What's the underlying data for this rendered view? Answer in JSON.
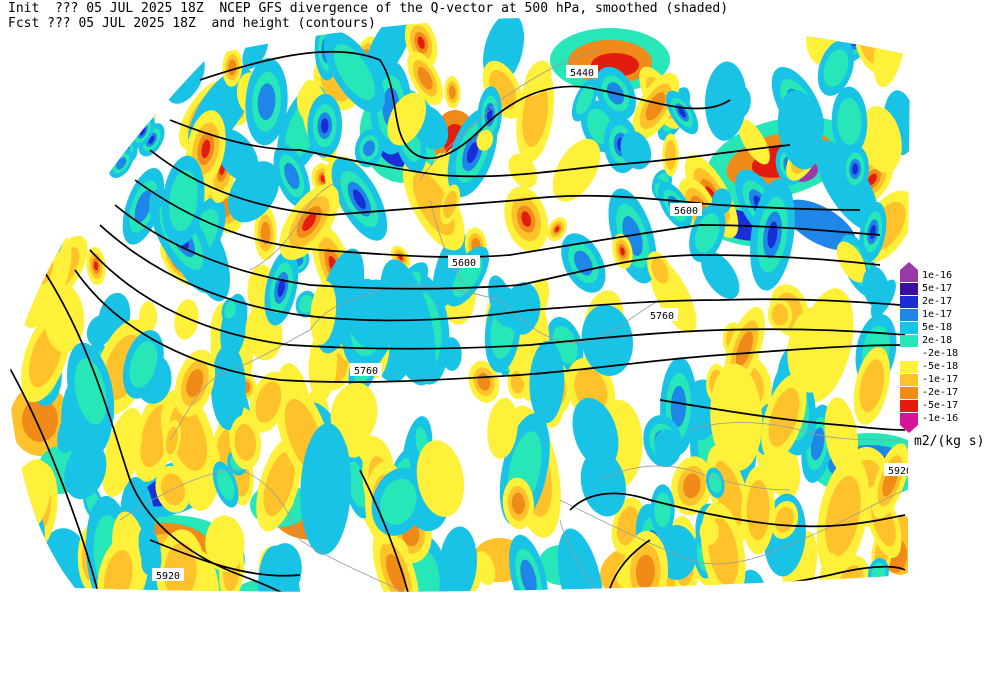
{
  "header": {
    "line1": "Init  ??? 05 JUL 2025 18Z  NCEP GFS divergence of the Q-vector at 500 hPa, smoothed (shaded)",
    "line2": "Fcst ??? 05 JUL 2025 18Z  and height (contours)"
  },
  "legend": {
    "units": "m2/(kg s)",
    "items": [
      {
        "label": "1e-16",
        "color": "#9a3aa8"
      },
      {
        "label": "5e-17",
        "color": "#3a0fa0"
      },
      {
        "label": "2e-17",
        "color": "#1a2ed8"
      },
      {
        "label": "1e-17",
        "color": "#1d86e8"
      },
      {
        "label": "5e-18",
        "color": "#19c3e6"
      },
      {
        "label": "2e-18",
        "color": "#27e6b8"
      },
      {
        "label": "-2e-18",
        "color": "#ffffff"
      },
      {
        "label": "-5e-18",
        "color": "#fff03a"
      },
      {
        "label": "-1e-17",
        "color": "#ffc22a"
      },
      {
        "label": "-2e-17",
        "color": "#f08a18"
      },
      {
        "label": "-5e-17",
        "color": "#e21d10"
      },
      {
        "label": "-1e-16",
        "color": "#d6149a"
      }
    ]
  },
  "contour_labels": [
    {
      "text": "5440"
    },
    {
      "text": "5600"
    },
    {
      "text": "5600"
    },
    {
      "text": "5760"
    },
    {
      "text": "5760"
    },
    {
      "text": "5920"
    },
    {
      "text": "5920"
    }
  ]
}
